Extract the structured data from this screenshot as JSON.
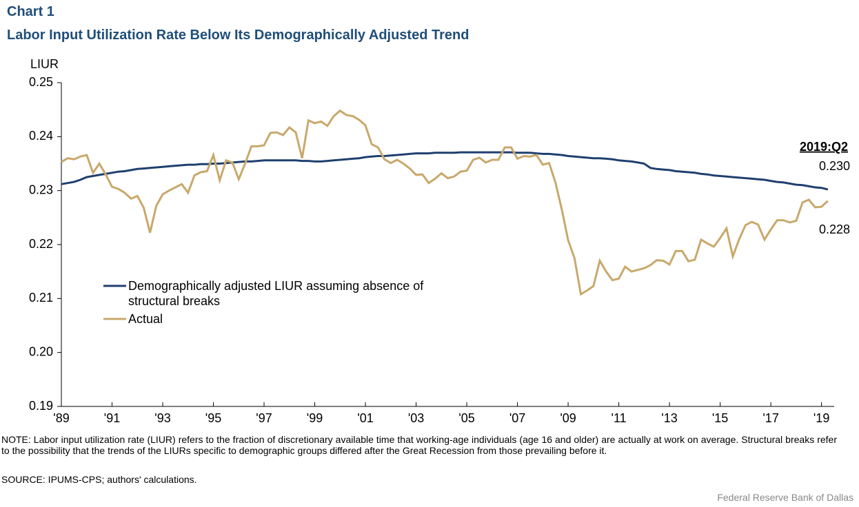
{
  "chart_data": {
    "type": "line",
    "label": "Chart 1",
    "title": "Labor Input Utilization Rate Below Its Demographically Adjusted Trend",
    "y_label": "LIUR",
    "x": [
      1989,
      1989.25,
      1989.5,
      1989.75,
      1990,
      1990.25,
      1990.5,
      1990.75,
      1991,
      1991.25,
      1991.5,
      1991.75,
      1992,
      1992.25,
      1992.5,
      1992.75,
      1993,
      1993.25,
      1993.5,
      1993.75,
      1994,
      1994.25,
      1994.5,
      1994.75,
      1995,
      1995.25,
      1995.5,
      1995.75,
      1996,
      1996.25,
      1996.5,
      1996.75,
      1997,
      1997.25,
      1997.5,
      1997.75,
      1998,
      1998.25,
      1998.5,
      1998.75,
      1999,
      1999.25,
      1999.5,
      1999.75,
      2000,
      2000.25,
      2000.5,
      2000.75,
      2001,
      2001.25,
      2001.5,
      2001.75,
      2002,
      2002.25,
      2002.5,
      2002.75,
      2003,
      2003.25,
      2003.5,
      2003.75,
      2004,
      2004.25,
      2004.5,
      2004.75,
      2005,
      2005.25,
      2005.5,
      2005.75,
      2006,
      2006.25,
      2006.5,
      2006.75,
      2007,
      2007.25,
      2007.5,
      2007.75,
      2008,
      2008.25,
      2008.5,
      2008.75,
      2009,
      2009.25,
      2009.5,
      2009.75,
      2010,
      2010.25,
      2010.5,
      2010.75,
      2011,
      2011.25,
      2011.5,
      2011.75,
      2012,
      2012.25,
      2012.5,
      2012.75,
      2013,
      2013.25,
      2013.5,
      2013.75,
      2014,
      2014.25,
      2014.5,
      2014.75,
      2015,
      2015.25,
      2015.5,
      2015.75,
      2016,
      2016.25,
      2016.5,
      2016.75,
      2017,
      2017.25,
      2017.5,
      2017.75,
      2018,
      2018.25,
      2018.5,
      2018.75,
      2019,
      2019.25
    ],
    "series": [
      {
        "name": "Demographically adjusted LIUR assuming absence of structural breaks",
        "color": "#1f3f6e",
        "values": [
          0.2312,
          0.2314,
          0.2316,
          0.232,
          0.2325,
          0.2327,
          0.2329,
          0.2331,
          0.2333,
          0.2335,
          0.2336,
          0.2338,
          0.234,
          0.2341,
          0.2342,
          0.2343,
          0.2344,
          0.2345,
          0.2346,
          0.2347,
          0.2348,
          0.2348,
          0.2349,
          0.2349,
          0.235,
          0.235,
          0.2351,
          0.2352,
          0.2353,
          0.2354,
          0.2354,
          0.2355,
          0.2356,
          0.2356,
          0.2356,
          0.2356,
          0.2356,
          0.2356,
          0.2355,
          0.2355,
          0.2354,
          0.2354,
          0.2355,
          0.2356,
          0.2357,
          0.2358,
          0.2359,
          0.236,
          0.2362,
          0.2363,
          0.2364,
          0.2364,
          0.2365,
          0.2366,
          0.2367,
          0.2368,
          0.2369,
          0.2369,
          0.2369,
          0.237,
          0.237,
          0.237,
          0.237,
          0.2371,
          0.2371,
          0.2371,
          0.2371,
          0.2371,
          0.2371,
          0.2371,
          0.2371,
          0.2371,
          0.237,
          0.237,
          0.237,
          0.2369,
          0.2368,
          0.2368,
          0.2367,
          0.2366,
          0.2364,
          0.2363,
          0.2362,
          0.2361,
          0.236,
          0.236,
          0.2359,
          0.2358,
          0.2356,
          0.2355,
          0.2354,
          0.2352,
          0.235,
          0.2342,
          0.234,
          0.2339,
          0.2338,
          0.2336,
          0.2335,
          0.2334,
          0.2333,
          0.2331,
          0.233,
          0.2328,
          0.2327,
          0.2326,
          0.2325,
          0.2324,
          0.2323,
          0.2322,
          0.2321,
          0.232,
          0.2318,
          0.2316,
          0.2315,
          0.2313,
          0.2311,
          0.231,
          0.2308,
          0.2306,
          0.2305,
          0.2302
        ]
      },
      {
        "name": "Actual",
        "color": "#c8a86b",
        "values": [
          0.2353,
          0.236,
          0.2358,
          0.2363,
          0.2366,
          0.2333,
          0.235,
          0.233,
          0.2307,
          0.2303,
          0.2296,
          0.2285,
          0.229,
          0.2268,
          0.2222,
          0.2272,
          0.2293,
          0.23,
          0.2306,
          0.2312,
          0.2296,
          0.2328,
          0.2334,
          0.2336,
          0.2366,
          0.2319,
          0.2356,
          0.2352,
          0.2321,
          0.235,
          0.2382,
          0.2382,
          0.2384,
          0.2407,
          0.2408,
          0.2403,
          0.2417,
          0.2408,
          0.236,
          0.243,
          0.2425,
          0.2428,
          0.242,
          0.2438,
          0.2448,
          0.244,
          0.2438,
          0.2431,
          0.2421,
          0.2386,
          0.238,
          0.2358,
          0.2351,
          0.2357,
          0.235,
          0.2341,
          0.2329,
          0.233,
          0.2314,
          0.2322,
          0.2332,
          0.2323,
          0.2326,
          0.2335,
          0.2337,
          0.2357,
          0.2361,
          0.2352,
          0.2357,
          0.2357,
          0.238,
          0.238,
          0.2359,
          0.2364,
          0.2363,
          0.2366,
          0.2348,
          0.2351,
          0.2315,
          0.2265,
          0.2208,
          0.2175,
          0.2108,
          0.2115,
          0.2123,
          0.217,
          0.215,
          0.2134,
          0.2137,
          0.2159,
          0.215,
          0.2153,
          0.2156,
          0.2162,
          0.2171,
          0.217,
          0.2163,
          0.2188,
          0.2188,
          0.2169,
          0.2172,
          0.2209,
          0.2202,
          0.2196,
          0.2212,
          0.223,
          0.2178,
          0.221,
          0.2236,
          0.2242,
          0.2237,
          0.2209,
          0.2228,
          0.2245,
          0.2245,
          0.2241,
          0.2244,
          0.2278,
          0.2283,
          0.2269,
          0.227,
          0.2281
        ]
      }
    ],
    "annotations": [
      "2019:Q2",
      "0.230",
      "0.228"
    ],
    "xlim": [
      1989,
      2019.5
    ],
    "xticks": [
      {
        "value": 1989,
        "label": "'89"
      },
      {
        "value": 1991,
        "label": "'91"
      },
      {
        "value": 1993,
        "label": "'93"
      },
      {
        "value": 1995,
        "label": "'95"
      },
      {
        "value": 1997,
        "label": "'97"
      },
      {
        "value": 1999,
        "label": "'99"
      },
      {
        "value": 2001,
        "label": "'01"
      },
      {
        "value": 2003,
        "label": "'03"
      },
      {
        "value": 2005,
        "label": "'05"
      },
      {
        "value": 2007,
        "label": "'07"
      },
      {
        "value": 2009,
        "label": "'09"
      },
      {
        "value": 2011,
        "label": "'11"
      },
      {
        "value": 2013,
        "label": "'13"
      },
      {
        "value": 2015,
        "label": "'15"
      },
      {
        "value": 2017,
        "label": "'17"
      },
      {
        "value": 2019,
        "label": "'19"
      }
    ],
    "ylim": [
      0.19,
      0.25
    ],
    "yticks": [
      0.19,
      {
        "value": 0.2,
        "label": "0.20"
      },
      0.21,
      0.22,
      0.23,
      0.24,
      0.25
    ],
    "grid": false,
    "note": "NOTE:  Labor input utilization rate (LIUR) refers to the fraction of discretionary available  time that working-age individuals (age 16 and older) are actually at work on average. Structural breaks refer to the possibility that the trends of the LIURs specific to demographic groups differed after the Great Recession from those prevailing before it.",
    "source": "SOURCE:  IPUMS-CPS; authors' calculations.",
    "credit": "Federal Reserve Bank of Dallas"
  }
}
